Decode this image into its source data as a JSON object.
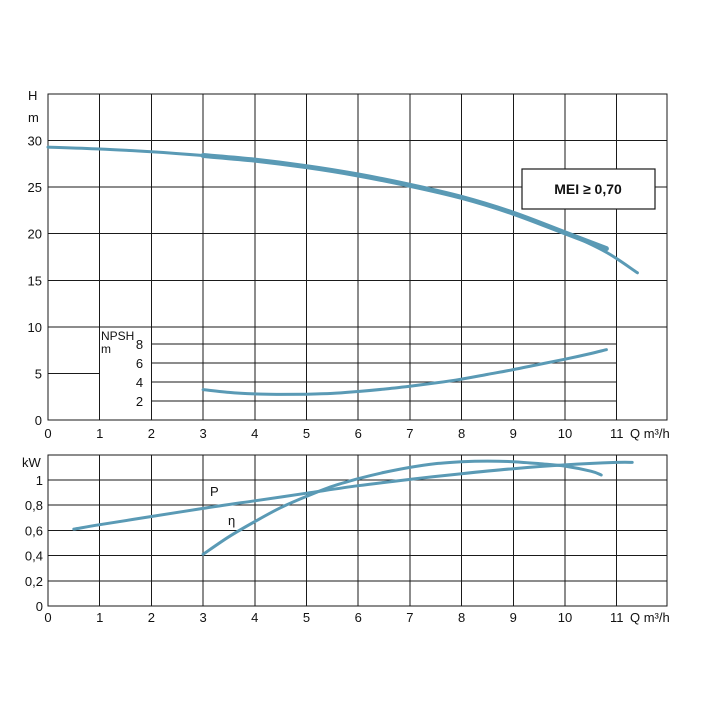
{
  "colors": {
    "curve": "#5a9ab5",
    "grid": "#1a1a1a",
    "background": "#ffffff"
  },
  "chart_data": [
    {
      "type": "line",
      "title": "",
      "xlabel": "Q m³/h",
      "ylabel": "H m",
      "y_unit_line1": "H",
      "y_unit_line2": "m",
      "xlim": [
        0,
        12
      ],
      "ylim": [
        0,
        35
      ],
      "x_ticks": [
        "0",
        "1",
        "2",
        "3",
        "4",
        "5",
        "6",
        "7",
        "8",
        "9",
        "10",
        "11"
      ],
      "y_ticks": [
        "0",
        "5",
        "10",
        "15",
        "20",
        "25",
        "30"
      ],
      "grid": true,
      "badge": "MEI ≥ 0,70",
      "series": [
        {
          "name": "",
          "style": "thin",
          "x": [
            0,
            1,
            2,
            3,
            4,
            5,
            6,
            7,
            8,
            9,
            10,
            10.8,
            11.4
          ],
          "y": [
            29.3,
            29.1,
            28.8,
            28.4,
            27.9,
            27.2,
            26.3,
            25.2,
            23.9,
            22.2,
            20.1,
            18.0,
            15.8
          ]
        },
        {
          "name": "",
          "style": "thick",
          "x": [
            3,
            4,
            5,
            6,
            7,
            8,
            9,
            10,
            10.8
          ],
          "y": [
            28.4,
            27.9,
            27.2,
            26.3,
            25.2,
            23.9,
            22.2,
            20.1,
            18.4
          ]
        }
      ]
    },
    {
      "type": "line",
      "title": "",
      "ylabel": "NPSH m",
      "y_unit_line1": "NPSH",
      "y_unit_line2": "m",
      "xlim": [
        0,
        12
      ],
      "ylim": [
        0,
        8
      ],
      "y_ticks": [
        "2",
        "4",
        "6",
        "8"
      ],
      "grid": true,
      "series": [
        {
          "name": "",
          "x": [
            3,
            3.5,
            4,
            4.5,
            5,
            5.5,
            6,
            6.5,
            7,
            7.5,
            8,
            8.5,
            9,
            9.5,
            10,
            10.5,
            10.8
          ],
          "y": [
            3.2,
            2.9,
            2.75,
            2.7,
            2.72,
            2.8,
            3.0,
            3.25,
            3.55,
            3.9,
            4.3,
            4.8,
            5.3,
            5.85,
            6.4,
            7.0,
            7.4
          ]
        }
      ]
    },
    {
      "type": "line",
      "title": "",
      "xlabel": "Q m³/h",
      "ylabel": "kW",
      "xlim": [
        0,
        12
      ],
      "ylim": [
        0,
        1.2
      ],
      "x_ticks": [
        "0",
        "1",
        "2",
        "3",
        "4",
        "5",
        "6",
        "7",
        "8",
        "9",
        "10",
        "11"
      ],
      "y_ticks": [
        "0",
        "0,2",
        "0,4",
        "0,6",
        "0,8",
        "1"
      ],
      "grid": true,
      "series": [
        {
          "name": "P",
          "x": [
            0.5,
            1,
            2,
            3,
            4,
            5,
            6,
            7,
            8,
            9,
            10,
            11,
            11.3
          ],
          "y": [
            0.61,
            0.645,
            0.71,
            0.775,
            0.835,
            0.895,
            0.955,
            1.005,
            1.05,
            1.09,
            1.12,
            1.14,
            1.14
          ]
        },
        {
          "name": "η",
          "x": [
            3,
            3.5,
            4,
            4.5,
            5,
            5.5,
            6,
            6.5,
            7,
            7.5,
            8,
            8.5,
            9,
            9.5,
            10,
            10.5,
            10.7
          ],
          "y": [
            0.41,
            0.55,
            0.67,
            0.78,
            0.87,
            0.95,
            1.01,
            1.06,
            1.1,
            1.13,
            1.145,
            1.15,
            1.145,
            1.13,
            1.11,
            1.07,
            1.04
          ]
        }
      ]
    }
  ]
}
